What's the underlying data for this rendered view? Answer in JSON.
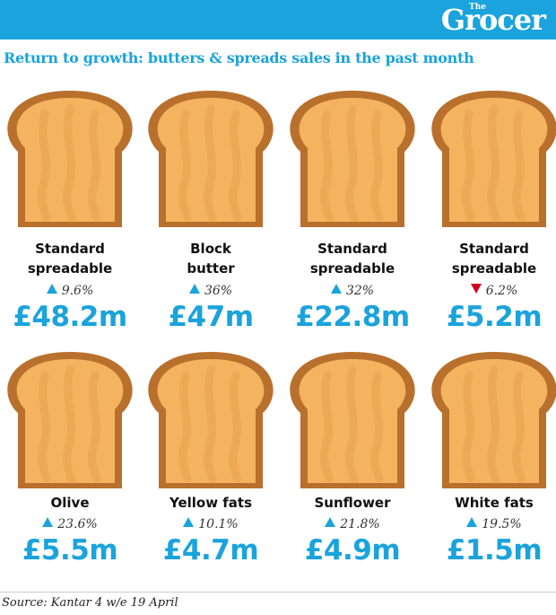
{
  "brand": {
    "small": "The",
    "name": "Grocer"
  },
  "headline": "Return to growth: butters & spreads sales in the past month",
  "colors": {
    "accent": "#1aa3dc",
    "down": "#d0021b",
    "toast_crust": "#b9702d",
    "toast_bread": "#f4b35e"
  },
  "chart_data": {
    "type": "table",
    "title": "Return to growth: butters & spreads sales in the past month",
    "items": [
      {
        "label_lines": [
          "Standard",
          "spreadable"
        ],
        "change": "9.6%",
        "direction": "up",
        "value": "£48.2m"
      },
      {
        "label_lines": [
          "Block",
          "butter"
        ],
        "change": "36%",
        "direction": "up",
        "value": "£47m"
      },
      {
        "label_lines": [
          "Standard",
          "spreadable"
        ],
        "change": "32%",
        "direction": "up",
        "value": "£22.8m"
      },
      {
        "label_lines": [
          "Standard",
          "spreadable"
        ],
        "change": "6.2%",
        "direction": "down",
        "value": "£5.2m"
      },
      {
        "label_lines": [
          "Olive"
        ],
        "change": "23.6%",
        "direction": "up",
        "value": "£5.5m"
      },
      {
        "label_lines": [
          "Yellow fats"
        ],
        "change": "10.1%",
        "direction": "up",
        "value": "£4.7m"
      },
      {
        "label_lines": [
          "Sunflower"
        ],
        "change": "21.8%",
        "direction": "up",
        "value": "£4.9m"
      },
      {
        "label_lines": [
          "White fats"
        ],
        "change": "19.5%",
        "direction": "up",
        "value": "£1.5m"
      }
    ]
  },
  "source": "Source: Kantar 4 w/e 19 April"
}
